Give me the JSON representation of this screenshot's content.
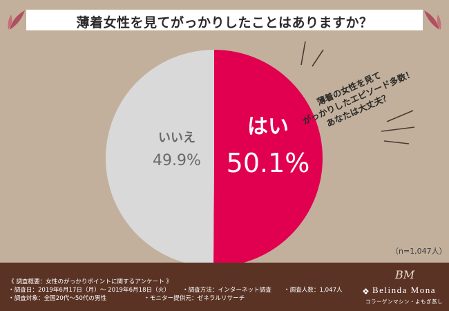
{
  "header": {
    "title": "薄着女性を見てがっかりしたことはありますか？"
  },
  "chart_data": {
    "type": "pie",
    "categories": [
      "はい",
      "いいえ"
    ],
    "values": [
      50.1,
      49.9
    ],
    "slices": [
      {
        "label": "はい",
        "value": 50.1,
        "value_text": "50.1%",
        "color": "#e0004f"
      },
      {
        "label": "いいえ",
        "value": 49.9,
        "value_text": "49.9%",
        "color": "#d9d9d9"
      }
    ]
  },
  "callout": {
    "lines": [
      "薄着の女性を見て",
      "がっかりしたエピソード多数！",
      "あなたは大丈夫？"
    ]
  },
  "sample_note": "（n=1,047人）",
  "survey": {
    "overview": "《 調査概要：女性のがっかりポイントに関するアンケート 》",
    "date": "・調査日：2019年6月17日（月）～ 2019年6月18日（火）",
    "method": "・調査方法：インターネット調査",
    "count": "・調査人数：1,047人",
    "target": "・調査対象：全国20代～50代の男性",
    "provider": "・モニター提供元：ゼネラルリサーチ"
  },
  "brand": {
    "monogram": "BM",
    "name": "Belinda Mona",
    "tagline": "コラーゲンマシン・よもぎ蒸し"
  },
  "colors": {
    "background": "#c2b09c",
    "footer": "#5a3325",
    "accent": "#e0004f",
    "secondary": "#d9d9d9",
    "leaf": "#b0505f"
  }
}
